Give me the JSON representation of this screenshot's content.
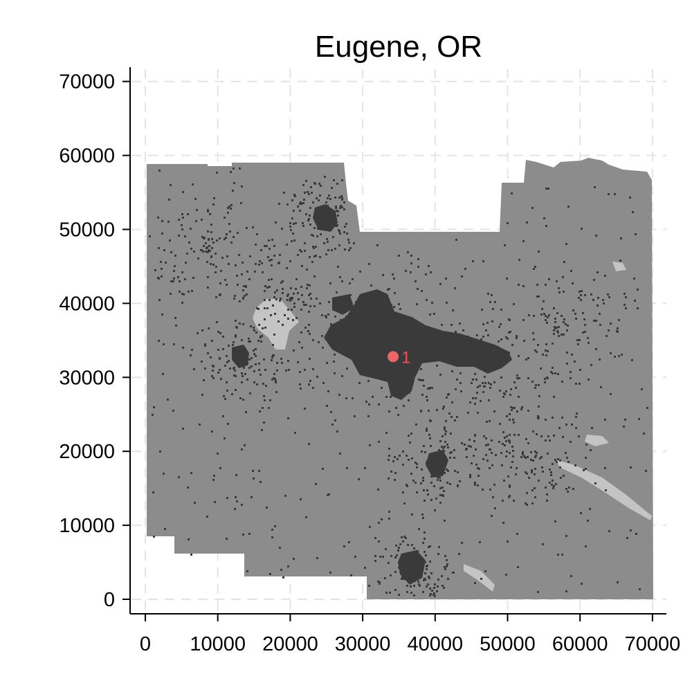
{
  "title": "Eugene, OR",
  "chart_data": {
    "type": "map",
    "title": "Eugene, OR",
    "xlim": [
      0,
      70000
    ],
    "ylim": [
      0,
      70000
    ],
    "x_ticks": [
      "0",
      "10000",
      "20000",
      "30000",
      "40000",
      "50000",
      "60000",
      "70000"
    ],
    "y_ticks": [
      "0",
      "10000",
      "20000",
      "30000",
      "40000",
      "50000",
      "60000",
      "70000"
    ],
    "grid": true,
    "marker": {
      "label": "1",
      "x": 34200,
      "y": 32800,
      "color": "#ff6b6b"
    },
    "colors": {
      "region": "#8c8c8c",
      "urban": "#3a3a3a",
      "water": "#c4c4c4",
      "grid": "#e4e4e4"
    }
  }
}
